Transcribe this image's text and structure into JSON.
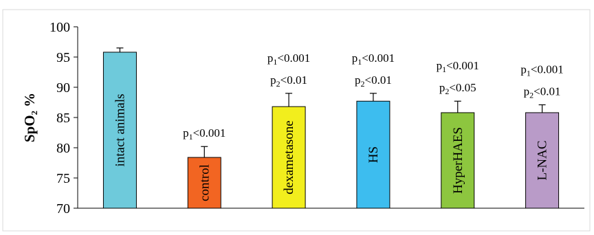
{
  "chart_data": {
    "type": "bar",
    "ylabel": "SpO₂ %",
    "ylim": [
      70,
      100
    ],
    "yticks": [
      70,
      75,
      80,
      85,
      90,
      95,
      100
    ],
    "grid": false,
    "legend": "none",
    "categories": [
      "intact animals",
      "control",
      "dexametasone",
      "HS",
      "HyperHAES",
      "L-NAC"
    ],
    "values": [
      95.8,
      78.4,
      86.8,
      87.7,
      85.8,
      85.8
    ],
    "errors": [
      0.7,
      1.8,
      2.2,
      1.3,
      1.9,
      1.3
    ],
    "colors": [
      "#6ecadb",
      "#f26522",
      "#f2ee1d",
      "#3dbdef",
      "#8dc63f",
      "#b99bc8"
    ],
    "annotations": [
      [],
      [
        {
          "prefix": "p",
          "sub": "1",
          "rest": "<0.001"
        }
      ],
      [
        {
          "prefix": "p",
          "sub": "1",
          "rest": "<0.001"
        },
        {
          "prefix": "p",
          "sub": "2",
          "rest": "<0.01"
        }
      ],
      [
        {
          "prefix": "p",
          "sub": "1",
          "rest": "<0.001"
        },
        {
          "prefix": "p",
          "sub": "2",
          "rest": "<0.01"
        }
      ],
      [
        {
          "prefix": "p",
          "sub": "1",
          "rest": "<0.001"
        },
        {
          "prefix": "p",
          "sub": "2",
          "rest": "<0.05"
        }
      ],
      [
        {
          "prefix": "p",
          "sub": "1",
          "rest": "<0.001"
        },
        {
          "prefix": "p",
          "sub": "2",
          "rest": "<0.01"
        }
      ]
    ]
  }
}
